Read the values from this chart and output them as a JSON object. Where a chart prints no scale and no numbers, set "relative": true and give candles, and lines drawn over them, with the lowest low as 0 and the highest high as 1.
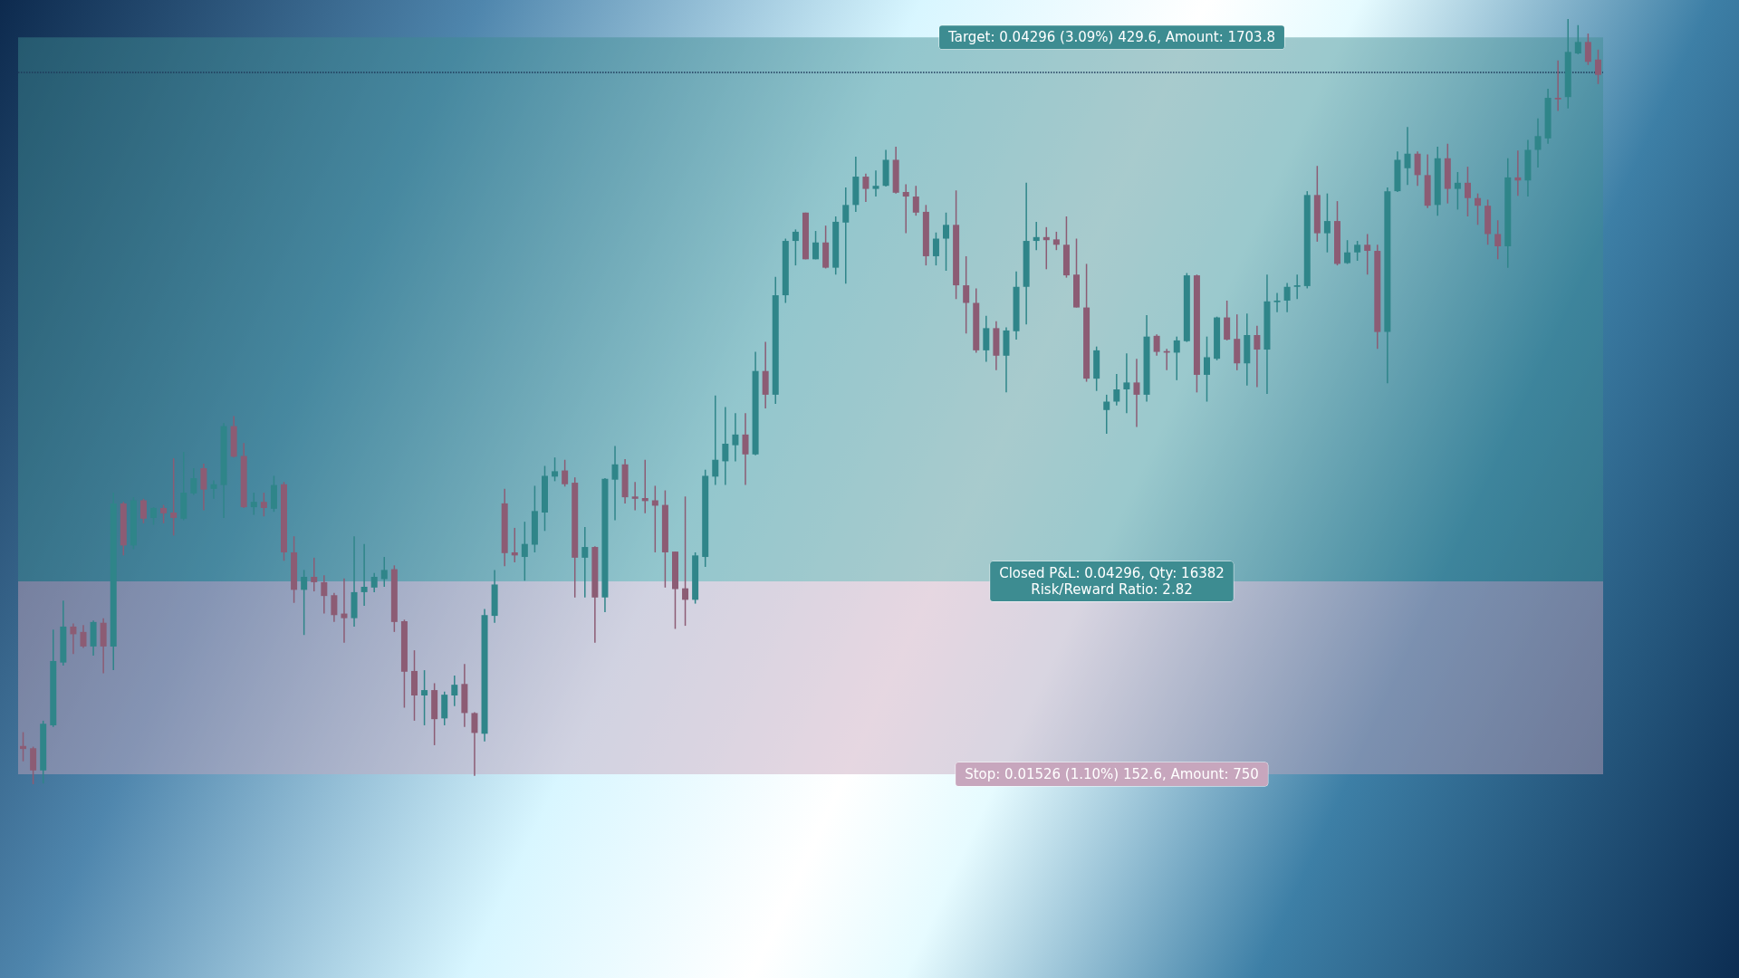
{
  "chart_data": {
    "type": "candlestick",
    "relative": true,
    "categories": [
      null,
      null,
      null,
      null,
      null,
      null,
      null,
      null,
      null,
      null,
      null,
      null,
      null,
      null,
      null,
      null,
      null,
      null,
      null,
      null,
      null,
      null,
      null,
      null,
      null,
      null,
      null,
      null,
      null,
      null,
      null,
      null,
      null,
      null,
      null,
      null,
      null,
      null,
      null,
      null,
      null,
      null,
      null,
      null,
      null,
      null,
      null,
      null,
      null,
      null,
      null,
      null,
      null,
      null,
      null,
      null,
      null,
      null,
      null,
      null,
      null,
      null,
      null,
      null,
      null,
      null,
      null,
      null,
      null,
      null,
      null,
      null,
      null,
      null,
      null,
      null,
      null,
      null,
      null,
      null,
      null,
      null,
      null,
      null,
      null,
      null,
      null,
      null,
      null,
      null,
      null,
      null,
      null,
      null,
      null,
      null,
      null,
      null,
      null,
      null,
      null,
      null,
      null,
      null,
      null,
      null,
      null,
      null,
      null,
      null,
      null,
      null,
      null,
      null,
      null,
      null,
      null,
      null,
      null,
      null,
      null,
      null,
      null,
      null,
      null,
      null,
      null,
      null,
      null,
      null,
      null,
      null,
      null,
      null,
      null,
      null,
      null,
      null,
      null,
      null,
      null,
      null,
      null,
      null,
      null,
      null,
      null,
      null,
      null,
      null,
      null,
      null,
      null,
      null,
      null,
      null,
      null,
      null
    ],
    "ohlc": [
      [
        0.05,
        0.068,
        0.03,
        0.046
      ],
      [
        0.047,
        0.049,
        0,
        0.018
      ],
      [
        0.018,
        0.083,
        0.001,
        0.079
      ],
      [
        0.077,
        0.202,
        0.075,
        0.161
      ],
      [
        0.159,
        0.24,
        0.155,
        0.206
      ],
      [
        0.206,
        0.21,
        0.17,
        0.196
      ],
      [
        0.199,
        0.208,
        0.178,
        0.18
      ],
      [
        0.18,
        0.214,
        0.168,
        0.212
      ],
      [
        0.211,
        0.217,
        0.145,
        0.18
      ],
      [
        0.18,
        0.381,
        0.149,
        0.367
      ],
      [
        0.367,
        0.369,
        0.299,
        0.312
      ],
      [
        0.312,
        0.375,
        0.307,
        0.371
      ],
      [
        0.371,
        0.373,
        0.341,
        0.347
      ],
      [
        0.348,
        0.362,
        0.339,
        0.361
      ],
      [
        0.361,
        0.365,
        0.341,
        0.354
      ],
      [
        0.355,
        0.426,
        0.325,
        0.348
      ],
      [
        0.347,
        0.434,
        0.345,
        0.381
      ],
      [
        0.38,
        0.413,
        0.378,
        0.4
      ],
      [
        0.413,
        0.419,
        0.358,
        0.385
      ],
      [
        0.386,
        0.397,
        0.373,
        0.392
      ],
      [
        0.391,
        0.472,
        0.348,
        0.468
      ],
      [
        0.468,
        0.481,
        0.427,
        0.428
      ],
      [
        0.429,
        0.446,
        0.361,
        0.362
      ],
      [
        0.362,
        0.381,
        0.352,
        0.369
      ],
      [
        0.369,
        0.381,
        0.35,
        0.361
      ],
      [
        0.36,
        0.403,
        0.356,
        0.391
      ],
      [
        0.392,
        0.395,
        0.292,
        0.303
      ],
      [
        0.303,
        0.324,
        0.237,
        0.254
      ],
      [
        0.254,
        0.28,
        0.195,
        0.271
      ],
      [
        0.271,
        0.296,
        0.252,
        0.264
      ],
      [
        0.264,
        0.273,
        0.223,
        0.246
      ],
      [
        0.247,
        0.25,
        0.212,
        0.221
      ],
      [
        0.223,
        0.269,
        0.185,
        0.217
      ],
      [
        0.217,
        0.324,
        0.206,
        0.251
      ],
      [
        0.251,
        0.314,
        0.233,
        0.258
      ],
      [
        0.257,
        0.276,
        0.251,
        0.271
      ],
      [
        0.268,
        0.297,
        0.258,
        0.28
      ],
      [
        0.281,
        0.286,
        0.199,
        0.212
      ],
      [
        0.213,
        0.215,
        0.1,
        0.147
      ],
      [
        0.148,
        0.175,
        0.083,
        0.116
      ],
      [
        0.116,
        0.149,
        0.077,
        0.123
      ],
      [
        0.123,
        0.132,
        0.051,
        0.085
      ],
      [
        0.086,
        0.121,
        0.077,
        0.117
      ],
      [
        0.116,
        0.142,
        0.102,
        0.13
      ],
      [
        0.131,
        0.157,
        0.075,
        0.093
      ],
      [
        0.093,
        0.094,
        0.011,
        0.067
      ],
      [
        0.066,
        0.229,
        0.056,
        0.221
      ],
      [
        0.22,
        0.28,
        0.211,
        0.261
      ],
      [
        0.367,
        0.386,
        0.285,
        0.302
      ],
      [
        0.303,
        0.335,
        0.29,
        0.299
      ],
      [
        0.297,
        0.343,
        0.266,
        0.314
      ],
      [
        0.313,
        0.39,
        0.303,
        0.357
      ],
      [
        0.355,
        0.416,
        0.331,
        0.403
      ],
      [
        0.402,
        0.427,
        0.396,
        0.409
      ],
      [
        0.41,
        0.424,
        0.389,
        0.392
      ],
      [
        0.394,
        0.401,
        0.244,
        0.296
      ],
      [
        0.296,
        0.336,
        0.244,
        0.31
      ],
      [
        0.31,
        0.311,
        0.185,
        0.244
      ],
      [
        0.244,
        0.4,
        0.225,
        0.399
      ],
      [
        0.398,
        0.442,
        0.345,
        0.418
      ],
      [
        0.418,
        0.425,
        0.367,
        0.375
      ],
      [
        0.376,
        0.395,
        0.358,
        0.373
      ],
      [
        0.374,
        0.424,
        0.354,
        0.37
      ],
      [
        0.371,
        0.39,
        0.303,
        0.364
      ],
      [
        0.365,
        0.384,
        0.257,
        0.303
      ],
      [
        0.304,
        0.304,
        0.203,
        0.255
      ],
      [
        0.256,
        0.376,
        0.207,
        0.241
      ],
      [
        0.241,
        0.303,
        0.236,
        0.299
      ],
      [
        0.297,
        0.411,
        0.284,
        0.403
      ],
      [
        0.402,
        0.508,
        0.391,
        0.424
      ],
      [
        0.422,
        0.493,
        0.391,
        0.445
      ],
      [
        0.443,
        0.485,
        0.422,
        0.457
      ],
      [
        0.457,
        0.485,
        0.391,
        0.431
      ],
      [
        0.431,
        0.565,
        0.43,
        0.54
      ],
      [
        0.54,
        0.578,
        0.491,
        0.509
      ],
      [
        0.509,
        0.663,
        0.497,
        0.639
      ],
      [
        0.639,
        0.713,
        0.629,
        0.71
      ],
      [
        0.71,
        0.725,
        0.678,
        0.722
      ],
      [
        0.747,
        0.747,
        0.686,
        0.686
      ],
      [
        0.686,
        0.723,
        0.686,
        0.708
      ],
      [
        0.708,
        0.73,
        0.674,
        0.675
      ],
      [
        0.675,
        0.742,
        0.666,
        0.735
      ],
      [
        0.734,
        0.78,
        0.654,
        0.757
      ],
      [
        0.757,
        0.82,
        0.748,
        0.794
      ],
      [
        0.794,
        0.798,
        0.761,
        0.778
      ],
      [
        0.778,
        0.802,
        0.768,
        0.782
      ],
      [
        0.782,
        0.829,
        0.781,
        0.816
      ],
      [
        0.816,
        0.833,
        0.772,
        0.773
      ],
      [
        0.774,
        0.784,
        0.72,
        0.768
      ],
      [
        0.768,
        0.782,
        0.743,
        0.747
      ],
      [
        0.748,
        0.757,
        0.678,
        0.69
      ],
      [
        0.69,
        0.721,
        0.678,
        0.713
      ],
      [
        0.713,
        0.747,
        0.671,
        0.731
      ],
      [
        0.731,
        0.776,
        0.634,
        0.652
      ],
      [
        0.652,
        0.69,
        0.589,
        0.629
      ],
      [
        0.629,
        0.648,
        0.564,
        0.567
      ],
      [
        0.567,
        0.612,
        0.552,
        0.596
      ],
      [
        0.596,
        0.605,
        0.541,
        0.56
      ],
      [
        0.56,
        0.597,
        0.512,
        0.593
      ],
      [
        0.592,
        0.67,
        0.581,
        0.65
      ],
      [
        0.65,
        0.786,
        0.601,
        0.71
      ],
      [
        0.71,
        0.735,
        0.698,
        0.715
      ],
      [
        0.715,
        0.728,
        0.673,
        0.711
      ],
      [
        0.712,
        0.722,
        0.698,
        0.705
      ],
      [
        0.705,
        0.742,
        0.662,
        0.665
      ],
      [
        0.666,
        0.713,
        0.623,
        0.623
      ],
      [
        0.623,
        0.68,
        0.526,
        0.53
      ],
      [
        0.53,
        0.572,
        0.514,
        0.567
      ],
      [
        0.489,
        0.509,
        0.458,
        0.5
      ],
      [
        0.5,
        0.536,
        0.495,
        0.516
      ],
      [
        0.516,
        0.563,
        0.485,
        0.525
      ],
      [
        0.525,
        0.556,
        0.467,
        0.509
      ],
      [
        0.509,
        0.613,
        0.5,
        0.585
      ],
      [
        0.586,
        0.588,
        0.56,
        0.565
      ],
      [
        0.566,
        0.569,
        0.541,
        0.564
      ],
      [
        0.564,
        0.585,
        0.528,
        0.58
      ],
      [
        0.579,
        0.668,
        0.578,
        0.665
      ],
      [
        0.665,
        0.666,
        0.512,
        0.535
      ],
      [
        0.535,
        0.585,
        0.5,
        0.558
      ],
      [
        0.556,
        0.611,
        0.554,
        0.61
      ],
      [
        0.61,
        0.632,
        0.58,
        0.581
      ],
      [
        0.582,
        0.614,
        0.541,
        0.55
      ],
      [
        0.55,
        0.615,
        0.521,
        0.587
      ],
      [
        0.587,
        0.599,
        0.519,
        0.568
      ],
      [
        0.568,
        0.666,
        0.51,
        0.631
      ],
      [
        0.63,
        0.642,
        0.617,
        0.632
      ],
      [
        0.632,
        0.655,
        0.617,
        0.65
      ],
      [
        0.65,
        0.666,
        0.634,
        0.652
      ],
      [
        0.651,
        0.775,
        0.648,
        0.77
      ],
      [
        0.77,
        0.808,
        0.709,
        0.72
      ],
      [
        0.72,
        0.772,
        0.695,
        0.736
      ],
      [
        0.736,
        0.762,
        0.678,
        0.68
      ],
      [
        0.681,
        0.711,
        0.68,
        0.695
      ],
      [
        0.695,
        0.71,
        0.684,
        0.705
      ],
      [
        0.705,
        0.719,
        0.666,
        0.697
      ],
      [
        0.697,
        0.705,
        0.569,
        0.591
      ],
      [
        0.591,
        0.78,
        0.524,
        0.775
      ],
      [
        0.775,
        0.827,
        0.774,
        0.816
      ],
      [
        0.805,
        0.859,
        0.783,
        0.824
      ],
      [
        0.824,
        0.827,
        0.782,
        0.796
      ],
      [
        0.796,
        0.823,
        0.753,
        0.756
      ],
      [
        0.757,
        0.833,
        0.743,
        0.818
      ],
      [
        0.818,
        0.837,
        0.759,
        0.778
      ],
      [
        0.778,
        0.8,
        0.751,
        0.786
      ],
      [
        0.786,
        0.807,
        0.742,
        0.766
      ],
      [
        0.766,
        0.772,
        0.731,
        0.756
      ],
      [
        0.756,
        0.764,
        0.705,
        0.719
      ],
      [
        0.719,
        0.737,
        0.686,
        0.703
      ],
      [
        0.703,
        0.818,
        0.675,
        0.793
      ],
      [
        0.793,
        0.828,
        0.769,
        0.789
      ],
      [
        0.789,
        0.842,
        0.768,
        0.829
      ],
      [
        0.829,
        0.87,
        0.806,
        0.847
      ],
      [
        0.844,
        0.909,
        0.837,
        0.897
      ],
      [
        0.897,
        0.946,
        0.88,
        0.895
      ],
      [
        0.898,
        1,
        0.883,
        0.957
      ],
      [
        0.955,
        0.992,
        0.954,
        0.97
      ],
      [
        0.97,
        0.981,
        0.94,
        0.944
      ],
      [
        0.947,
        0.96,
        0.915,
        0.927
      ]
    ],
    "bands": [
      {
        "axis": "y",
        "from": 0.265,
        "to": 0.976,
        "color": "#3d8c91"
      },
      {
        "axis": "y",
        "from": 0.013,
        "to": 0.265,
        "color": "#c7a6bd"
      }
    ],
    "ref_lines": [
      {
        "axis": "y",
        "value": 0.927,
        "color": "#1e3a5a",
        "line_style": "dotted"
      }
    ],
    "annotations": [
      {
        "text": "Target: 0.04296 (3.09%) 429.6, Amount: 1703.8",
        "y": 0.976
      },
      {
        "text": "Closed P&L: 0.04296, Qty: 16382\nRisk/Reward Ratio: 2.82",
        "y": 0.265
      },
      {
        "text": "Stop: 0.01526 (1.10%) 152.6, Amount: 750",
        "y": 0.013
      }
    ],
    "grid": false
  }
}
